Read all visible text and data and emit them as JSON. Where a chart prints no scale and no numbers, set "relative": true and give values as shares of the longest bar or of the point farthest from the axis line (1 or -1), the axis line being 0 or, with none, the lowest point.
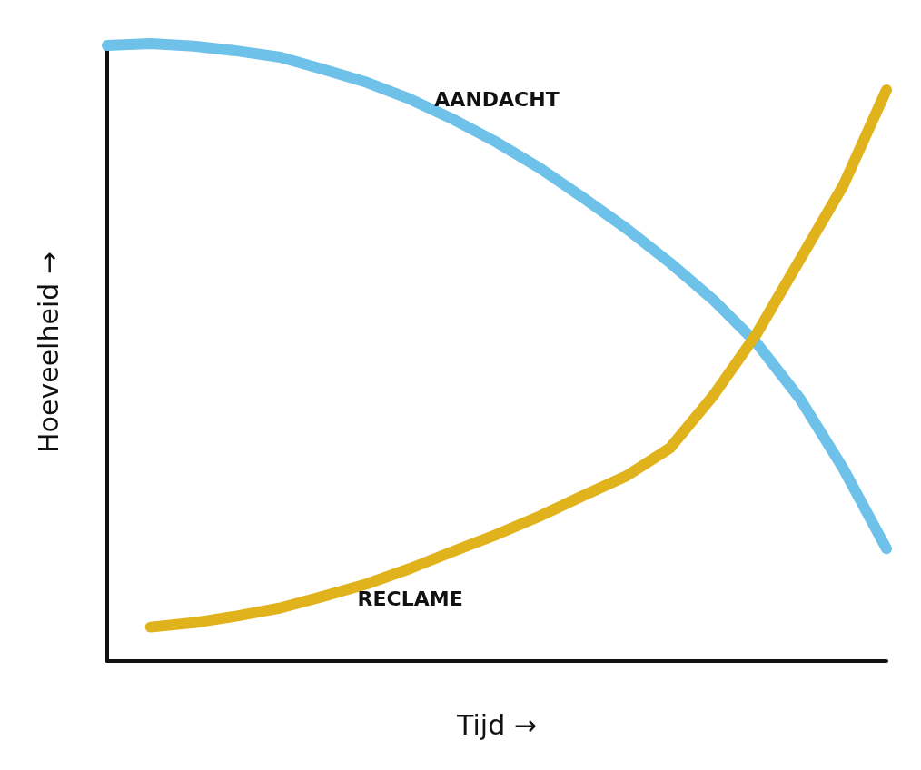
{
  "chart_data": {
    "type": "line",
    "relative": true,
    "xlabel": "Tijd →",
    "ylabel": "Hoeveelheid →",
    "categories": [
      null,
      null,
      null,
      null,
      null,
      null,
      null,
      null,
      null,
      null,
      null,
      null,
      null,
      null,
      null,
      null,
      null,
      null,
      null
    ],
    "series": [
      {
        "name": "AANDACHT",
        "color": "#6ec1e8",
        "values": [
          0.997,
          1.0,
          0.996,
          0.988,
          0.978,
          0.958,
          0.937,
          0.91,
          0.877,
          0.84,
          0.798,
          0.75,
          0.7,
          0.645,
          0.585,
          0.515,
          0.425,
          0.312,
          0.182
        ]
      },
      {
        "name": "RECLAME",
        "color": "#e0b21c",
        "values": [
          null,
          0.055,
          0.062,
          0.073,
          0.086,
          0.105,
          0.125,
          0.15,
          0.178,
          0.205,
          0.235,
          0.268,
          0.3,
          0.345,
          0.43,
          0.53,
          0.65,
          0.77,
          0.925
        ]
      }
    ],
    "grid": false,
    "legend": false,
    "marker": "none",
    "line_style": "solid"
  }
}
